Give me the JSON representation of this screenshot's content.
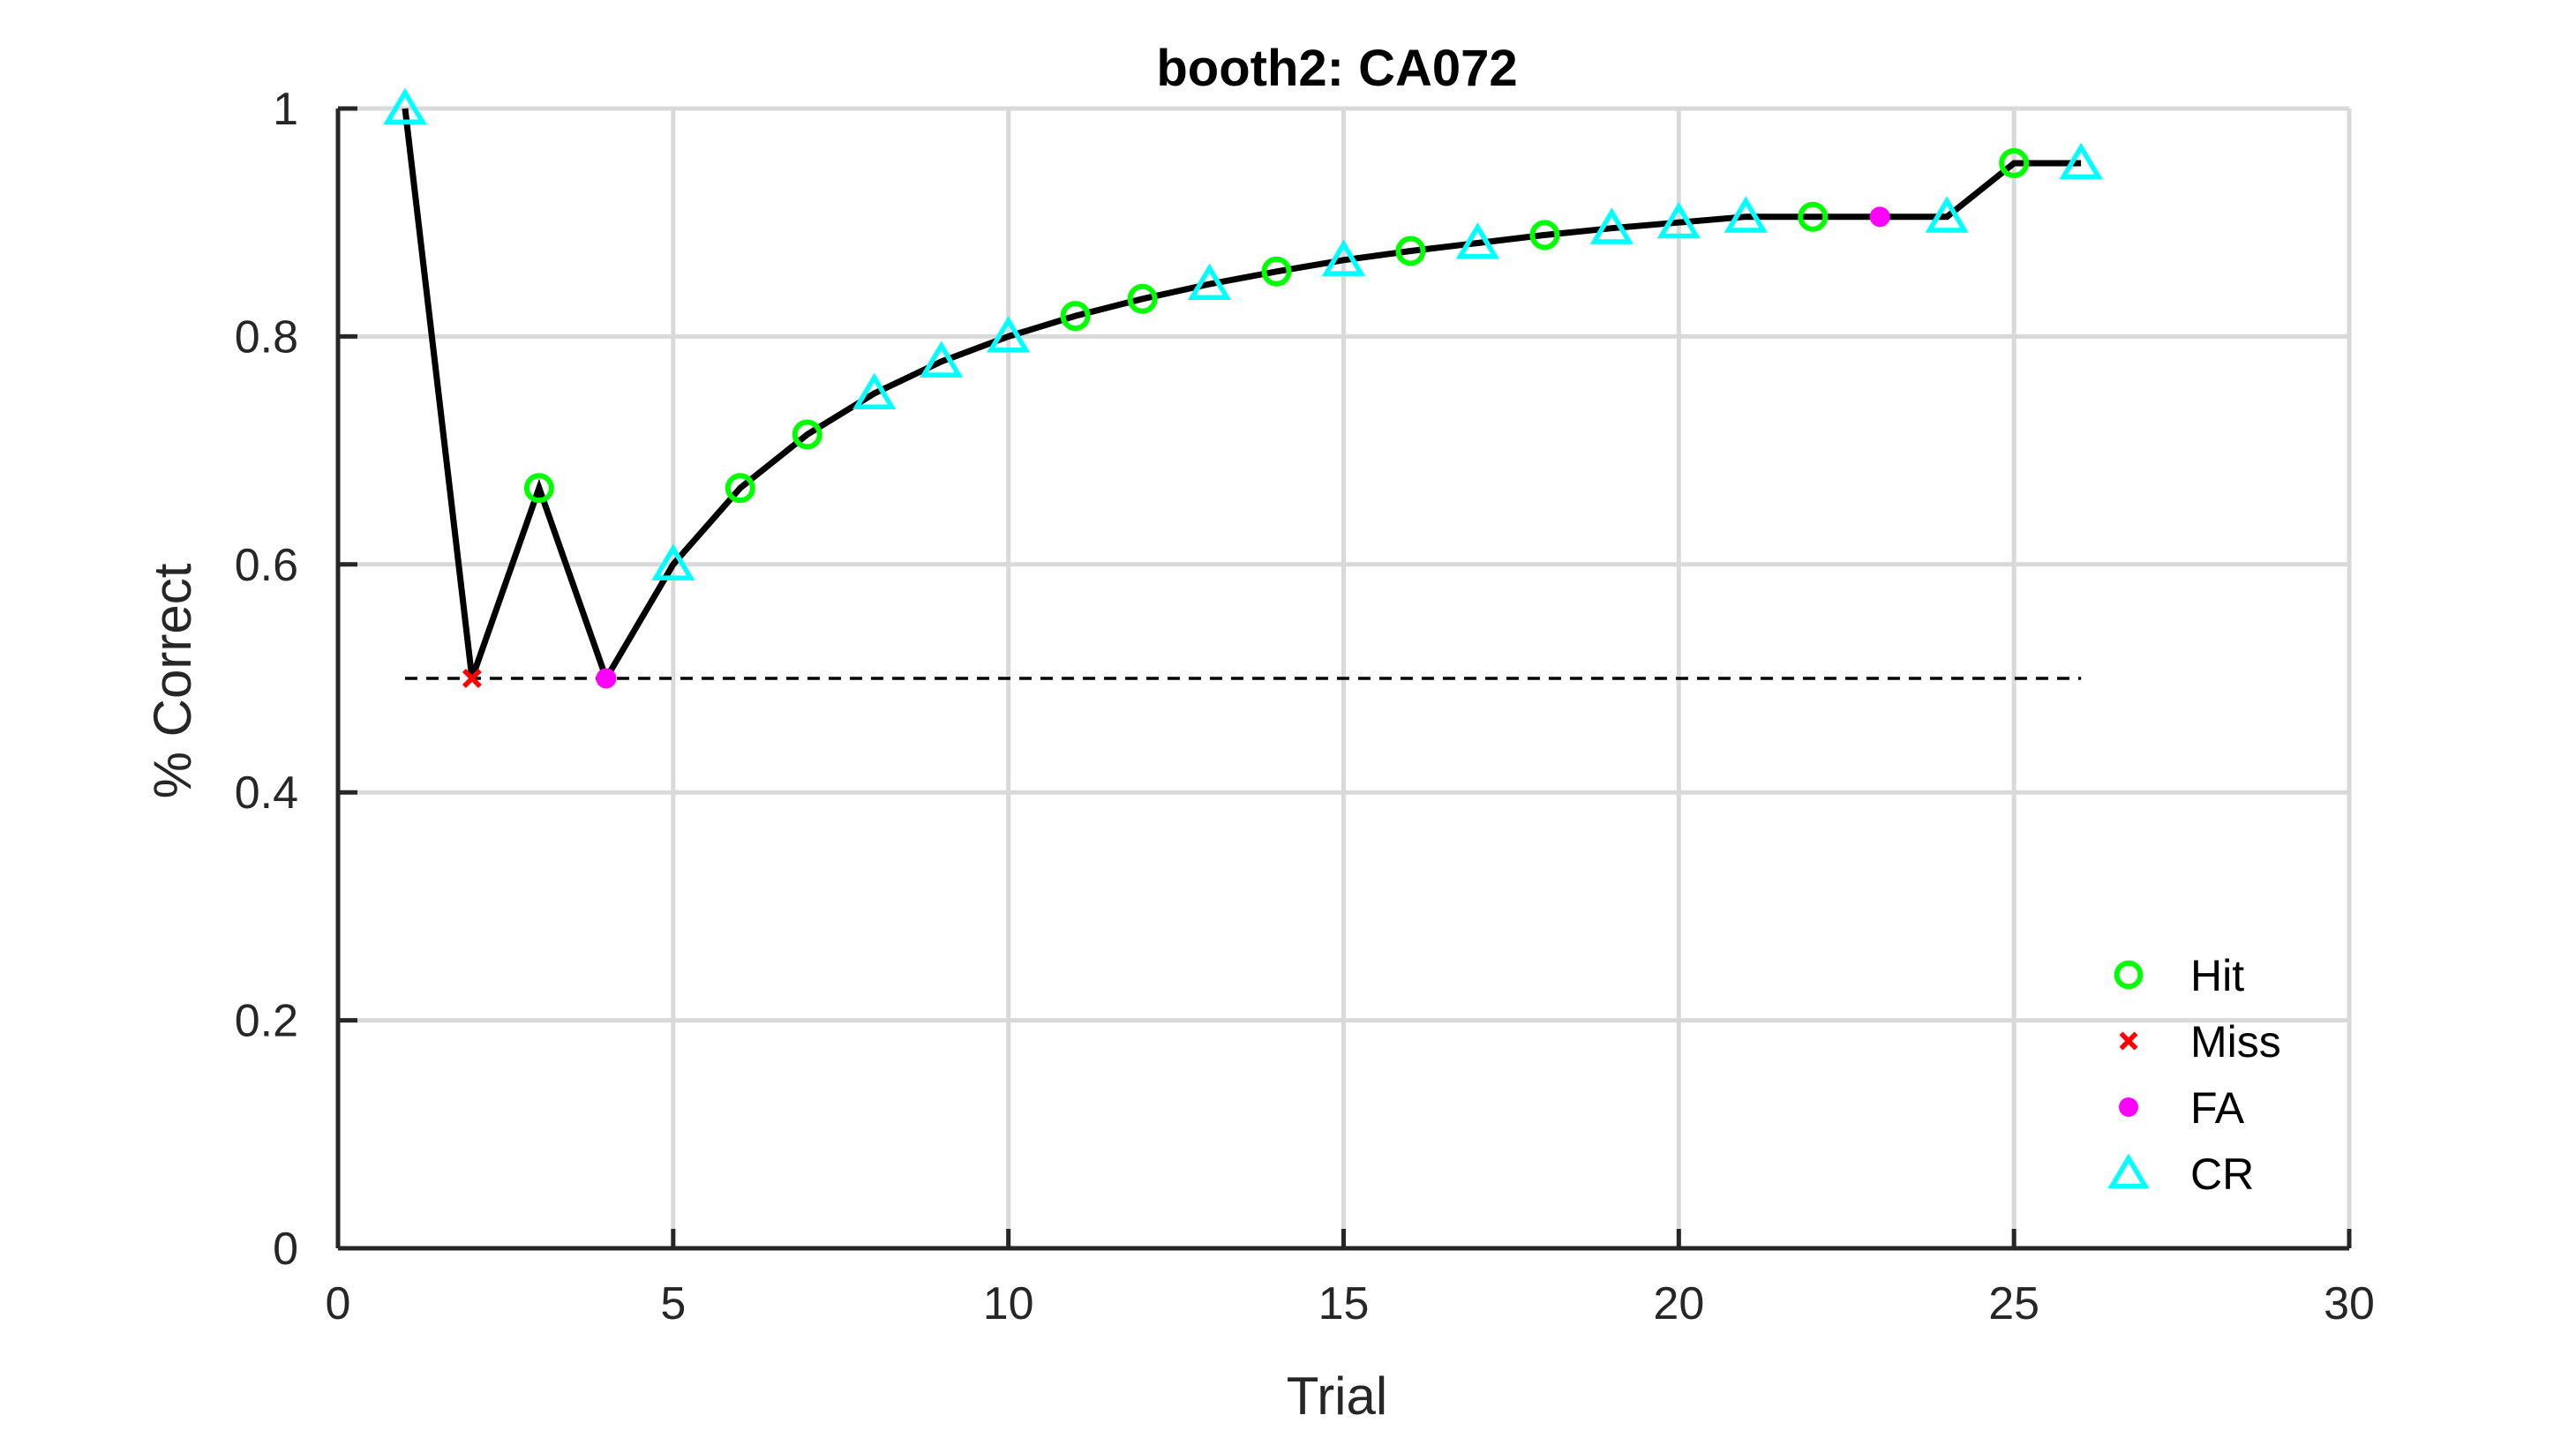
{
  "chart_data": {
    "type": "line",
    "title": "booth2: CA072",
    "xlabel": "Trial",
    "ylabel": "% Correct",
    "xlim": [
      0,
      30
    ],
    "ylim": [
      0,
      1
    ],
    "xticks": [
      0,
      5,
      10,
      15,
      20,
      25,
      30
    ],
    "yticks": [
      0,
      0.2,
      0.4,
      0.6,
      0.8,
      1
    ],
    "xtick_labels": [
      "0",
      "5",
      "10",
      "15",
      "20",
      "25",
      "30"
    ],
    "ytick_labels": [
      "0",
      "0.2",
      "0.4",
      "0.6",
      "0.8",
      "1"
    ],
    "grid": true,
    "legend_position": "bottom-right",
    "reference_line": {
      "y": 0.5,
      "x_range": [
        1,
        26
      ],
      "style": "dashed"
    },
    "x": [
      1,
      2,
      3,
      4,
      5,
      6,
      7,
      8,
      9,
      10,
      11,
      12,
      13,
      14,
      15,
      16,
      17,
      18,
      19,
      20,
      21,
      22,
      23,
      24,
      25,
      26
    ],
    "y": [
      1.0,
      0.5,
      0.667,
      0.5,
      0.6,
      0.667,
      0.714,
      0.75,
      0.778,
      0.8,
      0.818,
      0.833,
      0.846,
      0.857,
      0.867,
      0.875,
      0.882,
      0.889,
      0.895,
      0.9,
      0.905,
      0.905,
      0.905,
      0.905,
      0.952,
      0.952
    ],
    "outcomes": [
      "CR",
      "Miss",
      "Hit",
      "FA",
      "CR",
      "Hit",
      "Hit",
      "CR",
      "CR",
      "CR",
      "Hit",
      "Hit",
      "CR",
      "Hit",
      "CR",
      "Hit",
      "CR",
      "Hit",
      "CR",
      "CR",
      "CR",
      "Hit",
      "FA",
      "CR",
      "Hit",
      "CR"
    ],
    "legend": [
      {
        "key": "Hit",
        "label": "Hit",
        "marker": "circle",
        "color": "#00ff00"
      },
      {
        "key": "Miss",
        "label": "Miss",
        "marker": "x",
        "color": "#ff0000"
      },
      {
        "key": "FA",
        "label": "FA",
        "marker": "dot",
        "color": "#ff00ff"
      },
      {
        "key": "CR",
        "label": "CR",
        "marker": "triangle",
        "color": "#00ffff"
      }
    ],
    "colors": {
      "line": "#000000",
      "grid": "#d9d9d9",
      "axis": "#262626"
    }
  }
}
